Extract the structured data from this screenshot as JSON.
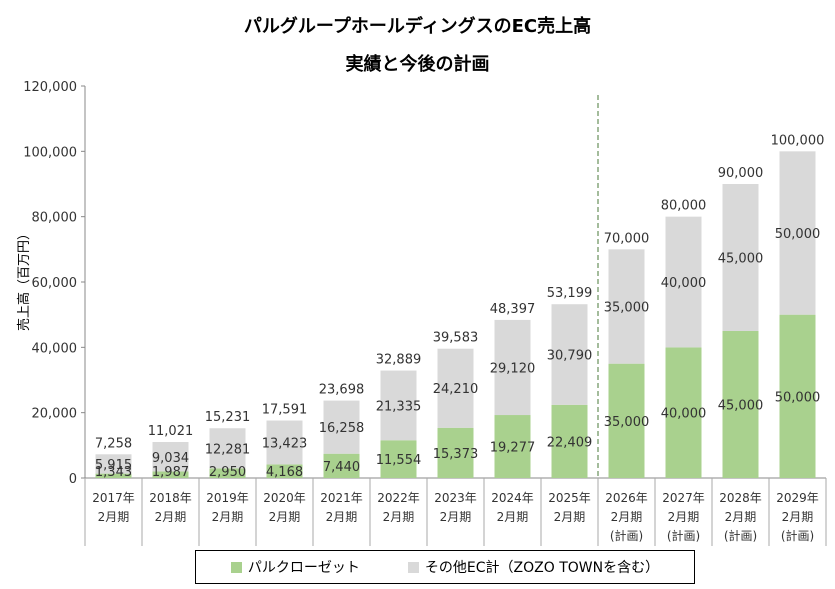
{
  "title_line1": "パルグループホールディングスのEC売上高",
  "title_line2": "実績と今後の計画",
  "colors": {
    "pal": "#a9d18e",
    "other": "#d9d9d9"
  },
  "chart_data": {
    "type": "bar",
    "stacked": true,
    "ylabel": "売上高（百万円）",
    "ylim": [
      0,
      120000
    ],
    "yticks": [
      "0",
      "20,000",
      "40,000",
      "60,000",
      "80,000",
      "100,000",
      "120,000"
    ],
    "categories": [
      [
        "2017年",
        "2月期"
      ],
      [
        "2018年",
        "2月期"
      ],
      [
        "2019年",
        "2月期"
      ],
      [
        "2020年",
        "2月期"
      ],
      [
        "2021年",
        "2月期"
      ],
      [
        "2022年",
        "2月期"
      ],
      [
        "2023年",
        "2月期"
      ],
      [
        "2024年",
        "2月期"
      ],
      [
        "2025年",
        "2月期"
      ],
      [
        "2026年",
        "2月期",
        "(計画)"
      ],
      [
        "2027年",
        "2月期",
        "(計画)"
      ],
      [
        "2028年",
        "2月期",
        "(計画)"
      ],
      [
        "2029年",
        "2月期",
        "(計画)"
      ]
    ],
    "series": [
      {
        "name": "パルクローゼット",
        "values": [
          1343,
          1987,
          2950,
          4168,
          7440,
          11554,
          15373,
          19277,
          22409,
          35000,
          40000,
          45000,
          50000
        ]
      },
      {
        "name": "その他EC計（ZOZO TOWNを含む）",
        "values": [
          5915,
          9034,
          12281,
          13423,
          16258,
          21335,
          24210,
          29120,
          30790,
          35000,
          40000,
          45000,
          50000
        ]
      }
    ],
    "totals": [
      7258,
      11021,
      15231,
      17591,
      23698,
      32889,
      39583,
      48397,
      53199,
      70000,
      80000,
      90000,
      100000
    ],
    "plan_divider_after_index": 8,
    "legend_position": "bottom",
    "grid": false
  }
}
